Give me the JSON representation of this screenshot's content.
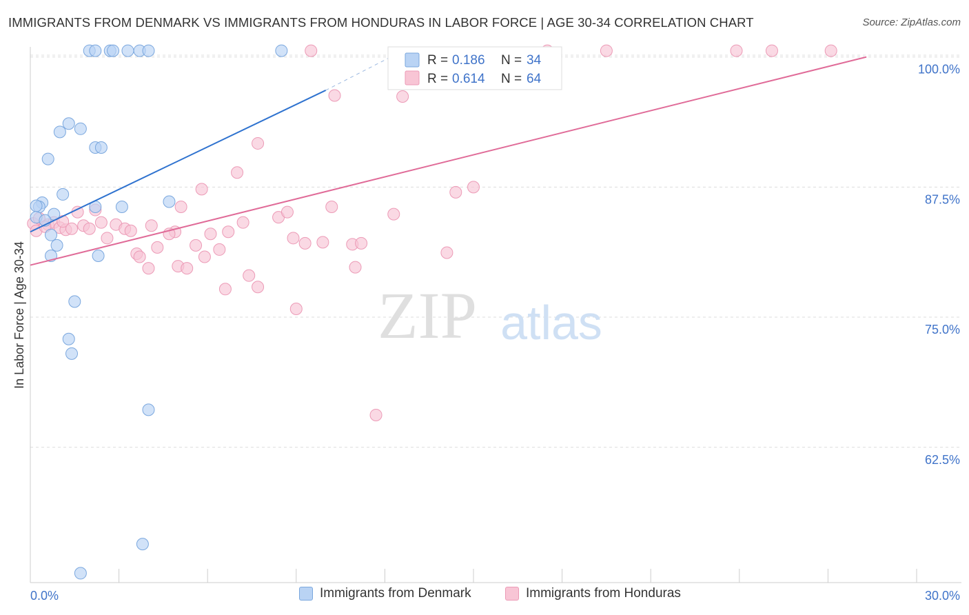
{
  "title": "IMMIGRANTS FROM DENMARK VS IMMIGRANTS FROM HONDURAS IN LABOR FORCE | AGE 30-34 CORRELATION CHART",
  "source": "Source: ZipAtlas.com",
  "watermark": {
    "zip": "ZIP",
    "atlas": "atlas"
  },
  "colors": {
    "denmark_fill": "#b9d3f4",
    "denmark_stroke": "#7aa7de",
    "denmark_line": "#2e72cf",
    "honduras_fill": "#f8c5d5",
    "honduras_stroke": "#ec9ab6",
    "honduras_line": "#e06b98",
    "axis_label": "#3f73c9"
  },
  "stats_box": {
    "rows": [
      {
        "r_label": "R = ",
        "r_value": "0.186",
        "n_label": "N = ",
        "n_value": "34"
      },
      {
        "r_label": "R = ",
        "r_value": "0.614",
        "n_label": "N = ",
        "n_value": "64"
      }
    ]
  },
  "legend": {
    "denmark": "Immigrants from Denmark",
    "honduras": "Immigrants from Honduras"
  },
  "chart_data": {
    "type": "scatter",
    "title": "IMMIGRANTS FROM DENMARK VS IMMIGRANTS FROM HONDURAS IN LABOR FORCE | AGE 30-34 CORRELATION CHART",
    "xlabel": "",
    "ylabel": "In Labor Force | Age 30-34",
    "xlim": [
      0,
      30
    ],
    "ylim": [
      49.5,
      101.5
    ],
    "x_tick_labels": [
      "0.0%",
      "30.0%"
    ],
    "y_ticks": [
      62.5,
      75.0,
      87.5,
      100.0
    ],
    "y_tick_labels": [
      "62.5%",
      "75.0%",
      "87.5%",
      "100.0%"
    ],
    "grid": true,
    "legend_position": "bottom-center",
    "series": [
      {
        "name": "Immigrants from Denmark",
        "r": 0.186,
        "n": 34,
        "points": [
          [
            2.0,
            100.6
          ],
          [
            2.2,
            100.6
          ],
          [
            2.7,
            100.6
          ],
          [
            2.8,
            100.6
          ],
          [
            3.3,
            100.6
          ],
          [
            3.7,
            100.6
          ],
          [
            4.0,
            100.6
          ],
          [
            8.5,
            100.6
          ],
          [
            1.3,
            93.6
          ],
          [
            1.0,
            92.8
          ],
          [
            1.7,
            93.1
          ],
          [
            2.2,
            91.3
          ],
          [
            2.4,
            91.3
          ],
          [
            0.6,
            90.2
          ],
          [
            1.1,
            86.8
          ],
          [
            0.4,
            86.0
          ],
          [
            0.3,
            85.6
          ],
          [
            0.2,
            85.7
          ],
          [
            0.8,
            84.9
          ],
          [
            0.2,
            84.6
          ],
          [
            0.5,
            84.3
          ],
          [
            2.2,
            85.6
          ],
          [
            3.1,
            85.6
          ],
          [
            4.7,
            86.1
          ],
          [
            0.7,
            82.9
          ],
          [
            0.9,
            81.9
          ],
          [
            0.7,
            80.9
          ],
          [
            2.3,
            80.9
          ],
          [
            1.5,
            76.5
          ],
          [
            1.3,
            72.9
          ],
          [
            1.4,
            71.5
          ],
          [
            4.0,
            66.1
          ],
          [
            3.8,
            53.2
          ],
          [
            1.7,
            50.4
          ]
        ],
        "trend": {
          "x0": 0.0,
          "y0": 83.2,
          "x1": 10.0,
          "y1": 96.8,
          "dashed_to_x": 12.2,
          "dashed_to_y": 100.0
        }
      },
      {
        "name": "Immigrants from Honduras",
        "r": 0.614,
        "n": 64,
        "points": [
          [
            9.5,
            100.6
          ],
          [
            17.5,
            100.6
          ],
          [
            19.5,
            100.6
          ],
          [
            23.9,
            100.6
          ],
          [
            25.1,
            100.6
          ],
          [
            27.1,
            100.6
          ],
          [
            10.3,
            96.3
          ],
          [
            12.6,
            96.2
          ],
          [
            7.7,
            91.7
          ],
          [
            7.0,
            88.9
          ],
          [
            5.8,
            87.3
          ],
          [
            14.4,
            87.0
          ],
          [
            15.0,
            87.5
          ],
          [
            10.2,
            85.6
          ],
          [
            12.3,
            84.9
          ],
          [
            8.4,
            84.6
          ],
          [
            8.7,
            85.1
          ],
          [
            7.2,
            84.1
          ],
          [
            5.1,
            85.6
          ],
          [
            2.2,
            85.3
          ],
          [
            1.6,
            85.1
          ],
          [
            0.1,
            84.0
          ],
          [
            0.2,
            83.3
          ],
          [
            0.6,
            83.9
          ],
          [
            0.8,
            84.1
          ],
          [
            1.0,
            83.6
          ],
          [
            1.2,
            83.4
          ],
          [
            1.4,
            83.5
          ],
          [
            1.8,
            83.8
          ],
          [
            2.0,
            83.5
          ],
          [
            2.4,
            84.1
          ],
          [
            2.9,
            83.9
          ],
          [
            3.2,
            83.5
          ],
          [
            3.4,
            83.3
          ],
          [
            4.1,
            83.8
          ],
          [
            4.9,
            83.2
          ],
          [
            4.7,
            83.0
          ],
          [
            6.1,
            83.0
          ],
          [
            6.7,
            83.2
          ],
          [
            2.6,
            82.6
          ],
          [
            3.6,
            81.1
          ],
          [
            3.7,
            80.8
          ],
          [
            4.0,
            79.7
          ],
          [
            4.3,
            81.7
          ],
          [
            5.0,
            79.9
          ],
          [
            5.3,
            79.7
          ],
          [
            5.6,
            81.9
          ],
          [
            5.9,
            80.8
          ],
          [
            6.4,
            81.5
          ],
          [
            6.6,
            77.7
          ],
          [
            7.4,
            79.0
          ],
          [
            7.7,
            77.9
          ],
          [
            8.9,
            82.6
          ],
          [
            9.3,
            82.1
          ],
          [
            9.9,
            82.2
          ],
          [
            10.9,
            82.0
          ],
          [
            11.2,
            82.1
          ],
          [
            11.0,
            79.8
          ],
          [
            14.1,
            81.2
          ],
          [
            9.0,
            75.8
          ],
          [
            11.7,
            65.6
          ],
          [
            1.1,
            84.2
          ],
          [
            0.3,
            84.5
          ],
          [
            0.5,
            83.7
          ]
        ],
        "trend": {
          "x0": 0.0,
          "y0": 80.0,
          "x1": 28.3,
          "y1": 100.0
        }
      }
    ]
  }
}
